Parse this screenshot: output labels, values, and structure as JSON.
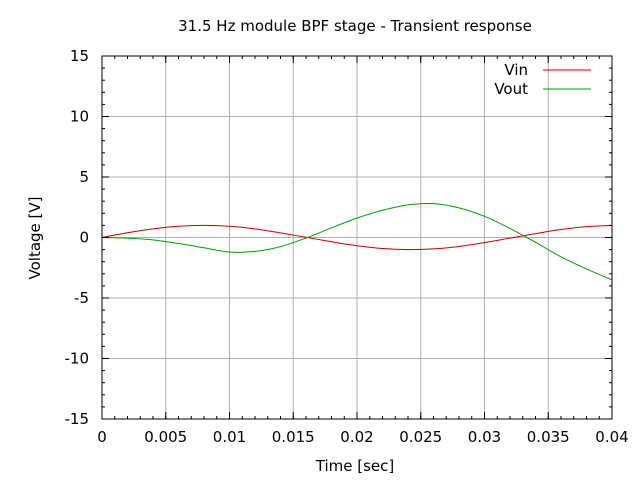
{
  "chart_data": {
    "type": "line",
    "title": "31.5 Hz module BPF stage - Transient response",
    "xlabel": "Time [sec]",
    "ylabel": "Voltage [V]",
    "xlim": [
      0,
      0.04
    ],
    "ylim": [
      -15,
      15
    ],
    "x_ticks": [
      "0",
      "0.005",
      "0.01",
      "0.015",
      "0.02",
      "0.025",
      "0.03",
      "0.035",
      "0.04"
    ],
    "x_tick_values": [
      0,
      0.005,
      0.01,
      0.015,
      0.02,
      0.025,
      0.03,
      0.035,
      0.04
    ],
    "y_ticks": [
      "-15",
      "-10",
      "-5",
      "0",
      "5",
      "10",
      "15"
    ],
    "y_tick_values": [
      -15,
      -10,
      -5,
      0,
      5,
      10,
      15
    ],
    "grid": true,
    "legend_position": "top-right",
    "series": [
      {
        "name": "Vin",
        "color": "#cc0000",
        "points": [
          [
            0,
            0
          ],
          [
            0.002,
            0.39
          ],
          [
            0.004,
            0.71
          ],
          [
            0.006,
            0.93
          ],
          [
            0.008,
            1.0
          ],
          [
            0.01,
            0.93
          ],
          [
            0.012,
            0.71
          ],
          [
            0.014,
            0.38
          ],
          [
            0.016,
            0.02
          ],
          [
            0.018,
            -0.35
          ],
          [
            0.02,
            -0.68
          ],
          [
            0.022,
            -0.91
          ],
          [
            0.024,
            -1.0
          ],
          [
            0.026,
            -0.94
          ],
          [
            0.028,
            -0.74
          ],
          [
            0.03,
            -0.42
          ],
          [
            0.032,
            -0.05
          ],
          [
            0.034,
            0.32
          ],
          [
            0.036,
            0.66
          ],
          [
            0.038,
            0.9
          ],
          [
            0.04,
            1.0
          ]
        ]
      },
      {
        "name": "Vout",
        "color": "#00a000",
        "points": [
          [
            0,
            0
          ],
          [
            0.002,
            -0.05
          ],
          [
            0.004,
            -0.2
          ],
          [
            0.006,
            -0.5
          ],
          [
            0.008,
            -0.85
          ],
          [
            0.01,
            -1.2
          ],
          [
            0.012,
            -1.15
          ],
          [
            0.014,
            -0.75
          ],
          [
            0.016,
            -0.05
          ],
          [
            0.018,
            0.8
          ],
          [
            0.02,
            1.6
          ],
          [
            0.022,
            2.25
          ],
          [
            0.024,
            2.7
          ],
          [
            0.026,
            2.8
          ],
          [
            0.028,
            2.45
          ],
          [
            0.03,
            1.75
          ],
          [
            0.032,
            0.75
          ],
          [
            0.034,
            -0.4
          ],
          [
            0.036,
            -1.6
          ],
          [
            0.038,
            -2.6
          ],
          [
            0.04,
            -3.5
          ]
        ]
      }
    ]
  }
}
